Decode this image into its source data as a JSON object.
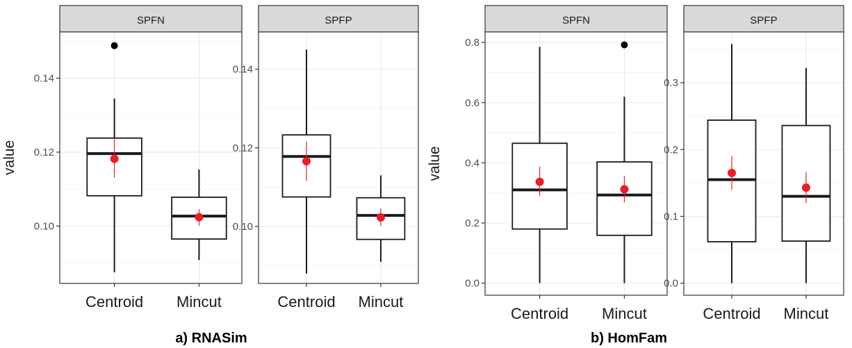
{
  "chart_data": [
    {
      "type": "box",
      "group": "a) RNASim",
      "facet": "SPFN",
      "ylabel": "value",
      "categories": [
        "Centroid",
        "Mincut"
      ],
      "yticks": [
        0.1,
        0.12,
        0.14
      ],
      "ytick_labels": [
        "0.10",
        "0.12",
        "0.14"
      ],
      "ylim": [
        0.0845,
        0.1525
      ],
      "boxes": [
        {
          "category": "Centroid",
          "whisker_low": 0.0875,
          "q1": 0.1082,
          "median": 0.1196,
          "q3": 0.1238,
          "whisker_high": 0.1345,
          "outliers": [
            0.1488
          ],
          "mean": 0.1182,
          "mean_low": 0.1131,
          "mean_high": 0.1236
        },
        {
          "category": "Mincut",
          "whisker_low": 0.0908,
          "q1": 0.0965,
          "median": 0.1027,
          "q3": 0.1078,
          "whisker_high": 0.1153,
          "outliers": [],
          "mean": 0.1024,
          "mean_low": 0.1001,
          "mean_high": 0.1046
        }
      ]
    },
    {
      "type": "box",
      "group": "a) RNASim",
      "facet": "SPFP",
      "ylabel": "",
      "categories": [
        "Centroid",
        "Mincut"
      ],
      "yticks": [
        0.1,
        0.12,
        0.14
      ],
      "ytick_labels": [
        "0.10",
        "0.12",
        "0.14"
      ],
      "ylim": [
        0.0855,
        0.1495
      ],
      "boxes": [
        {
          "category": "Centroid",
          "whisker_low": 0.088,
          "q1": 0.1075,
          "median": 0.1178,
          "q3": 0.1233,
          "whisker_high": 0.145,
          "outliers": [],
          "mean": 0.1166,
          "mean_low": 0.1116,
          "mean_high": 0.1216
        },
        {
          "category": "Mincut",
          "whisker_low": 0.091,
          "q1": 0.0967,
          "median": 0.1028,
          "q3": 0.1073,
          "whisker_high": 0.113,
          "outliers": [],
          "mean": 0.1023,
          "mean_low": 0.1001,
          "mean_high": 0.1046
        }
      ]
    },
    {
      "type": "box",
      "group": "b) HomFam",
      "facet": "SPFN",
      "ylabel": "value",
      "categories": [
        "Centroid",
        "Mincut"
      ],
      "yticks": [
        0.0,
        0.2,
        0.4,
        0.6,
        0.8
      ],
      "ytick_labels": [
        "0.0",
        "0.2",
        "0.4",
        "0.6",
        "0.8"
      ],
      "ylim": [
        -0.04,
        0.835
      ],
      "boxes": [
        {
          "category": "Centroid",
          "whisker_low": 0.0,
          "q1": 0.18,
          "median": 0.31,
          "q3": 0.465,
          "whisker_high": 0.785,
          "outliers": [],
          "mean": 0.337,
          "mean_low": 0.29,
          "mean_high": 0.387
        },
        {
          "category": "Mincut",
          "whisker_low": 0.0,
          "q1": 0.159,
          "median": 0.293,
          "q3": 0.403,
          "whisker_high": 0.62,
          "outliers": [
            0.792
          ],
          "mean": 0.312,
          "mean_low": 0.268,
          "mean_high": 0.357
        }
      ]
    },
    {
      "type": "box",
      "group": "b) HomFam",
      "facet": "SPFP",
      "ylabel": "",
      "categories": [
        "Centroid",
        "Mincut"
      ],
      "yticks": [
        0.0,
        0.1,
        0.2,
        0.3
      ],
      "ytick_labels": [
        "0.0",
        "0.1",
        "0.2",
        "0.3"
      ],
      "ylim": [
        -0.018,
        0.376
      ],
      "boxes": [
        {
          "category": "Centroid",
          "whisker_low": 0.0,
          "q1": 0.062,
          "median": 0.155,
          "q3": 0.244,
          "whisker_high": 0.358,
          "outliers": [],
          "mean": 0.165,
          "mean_low": 0.14,
          "mean_high": 0.19
        },
        {
          "category": "Mincut",
          "whisker_low": 0.0,
          "q1": 0.063,
          "median": 0.13,
          "q3": 0.236,
          "whisker_high": 0.322,
          "outliers": [],
          "mean": 0.143,
          "mean_low": 0.12,
          "mean_high": 0.166
        }
      ]
    }
  ],
  "captions": {
    "left": "a) RNASim",
    "right": "b) HomFam"
  },
  "colors": {
    "box_outline": "#1a1a1a",
    "median": "#1a1a1a",
    "outlier": "#000000",
    "mean_point": "#ee1c25",
    "strip_fill": "#d9d9d9",
    "grid": "#ebebeb"
  }
}
